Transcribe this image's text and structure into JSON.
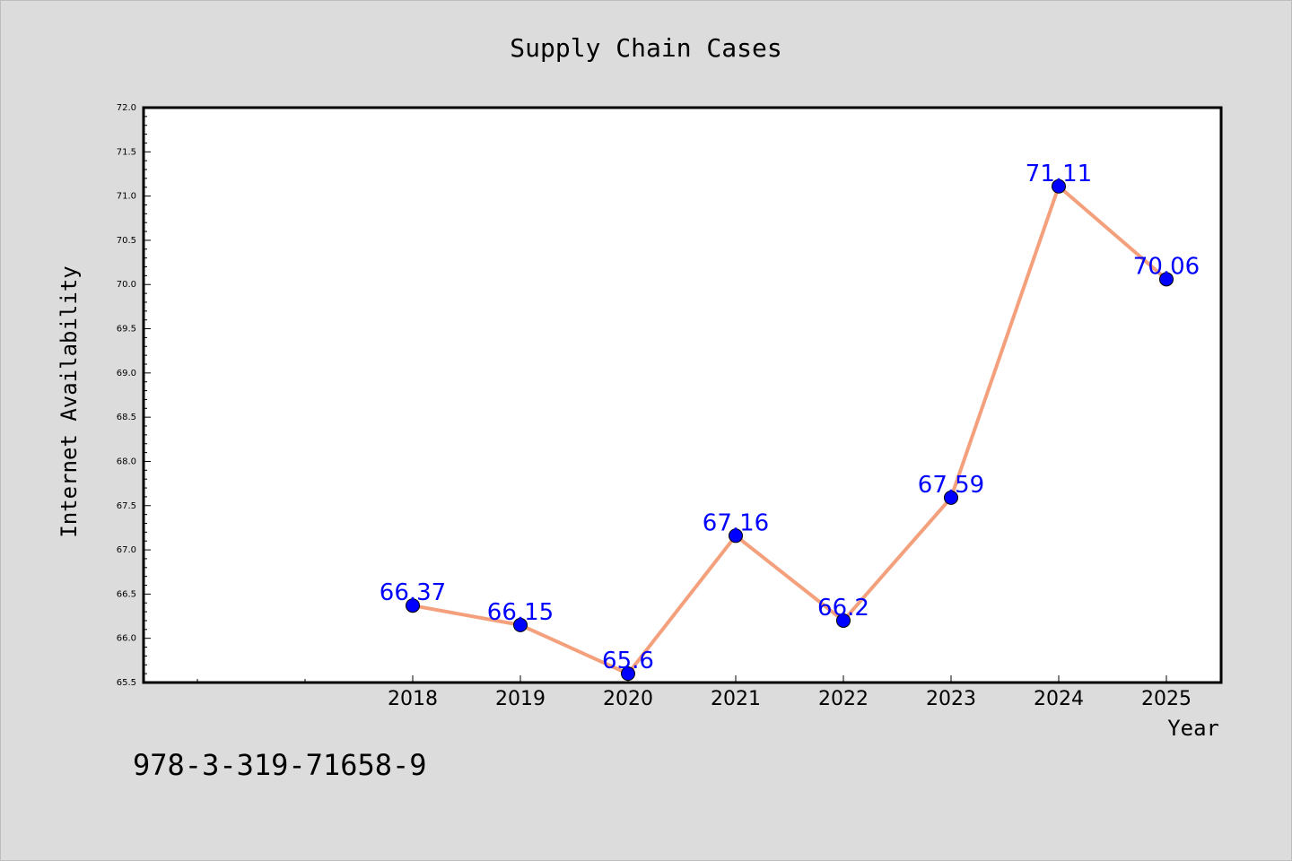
{
  "chart_data": {
    "type": "line",
    "title": "Supply Chain Cases",
    "xlabel": "Year",
    "ylabel": "Internet Availability",
    "x": [
      "2018",
      "2019",
      "2020",
      "2021",
      "2022",
      "2023",
      "2024",
      "2025"
    ],
    "series": [
      {
        "values": [
          66.37,
          66.15,
          65.6,
          67.16,
          66.2,
          67.59,
          71.11,
          70.06
        ],
        "labels": [
          "66.37",
          "66.15",
          "65.6",
          "67.16",
          "66.2",
          "67.59",
          "71.11",
          "70.06"
        ]
      }
    ],
    "ylim": [
      65.5,
      72.0
    ],
    "yticks": [
      "65.5",
      "66.0",
      "66.5",
      "67.0",
      "67.5",
      "68.0",
      "68.5",
      "69.0",
      "69.5",
      "70.0",
      "70.5",
      "71.0",
      "71.5",
      "72.0"
    ],
    "grid": false,
    "line_color": "#f4a07c",
    "marker_color": "#0000ff",
    "label_color": "#0000ff",
    "background": "#dcdcdc",
    "plot_background": "#ffffff"
  },
  "footer": {
    "isbn": "978-3-319-71658-9"
  }
}
